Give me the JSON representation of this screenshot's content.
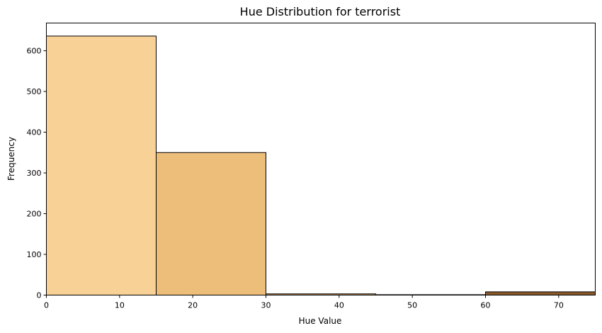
{
  "chart_data": {
    "type": "bar",
    "title": "Hue Distribution for terrorist",
    "xlabel": "Hue Value",
    "ylabel": "Frequency",
    "xlim": [
      0,
      75
    ],
    "ylim": [
      0,
      668
    ],
    "xticks": [
      0,
      10,
      20,
      30,
      40,
      50,
      60,
      70
    ],
    "yticks": [
      0,
      100,
      200,
      300,
      400,
      500,
      600
    ],
    "grid": false,
    "bins": [
      {
        "x0": 0,
        "x1": 15,
        "value": 636,
        "color": "#f8d197"
      },
      {
        "x0": 15,
        "x1": 30,
        "value": 350,
        "color": "#edbd7a"
      },
      {
        "x0": 30,
        "x1": 45,
        "value": 3,
        "color": "#c79a5c"
      },
      {
        "x0": 45,
        "x1": 60,
        "value": 1,
        "color": "#a57840"
      },
      {
        "x0": 60,
        "x1": 75,
        "value": 8,
        "color": "#8b5a2b"
      }
    ]
  }
}
